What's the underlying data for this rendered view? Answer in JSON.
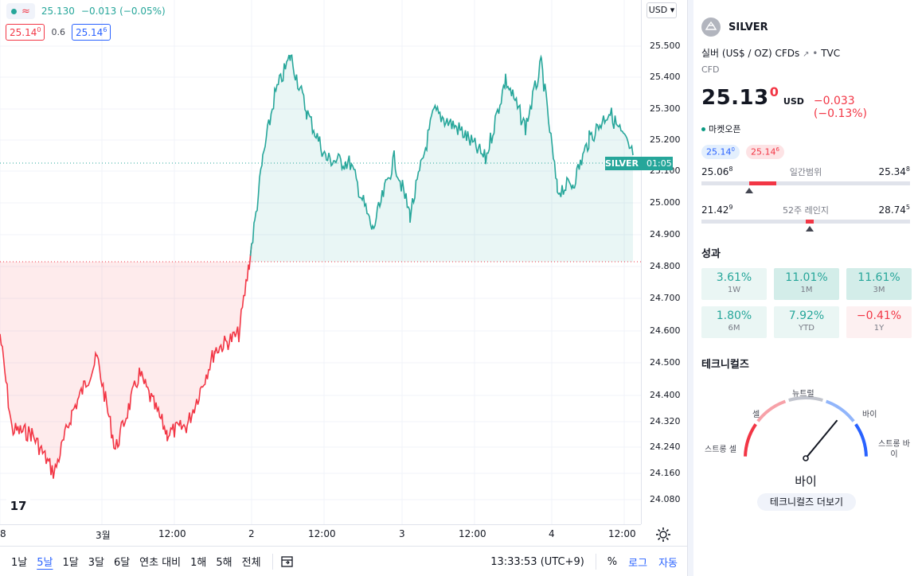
{
  "legend": {
    "toggle_icon": "wave-icon",
    "price": "25.130",
    "change": "−0.013 (−0.05%)"
  },
  "bidask": {
    "bid": "25.14",
    "bid_sup": "0",
    "spread": "0.6",
    "ask": "25.14",
    "ask_sup": "6"
  },
  "currency_button": "USD",
  "price_axis": [
    "25.500",
    "25.400",
    "25.300",
    "25.200",
    "25.100",
    "25.000",
    "24.900",
    "24.800",
    "24.700",
    "24.600",
    "24.500",
    "24.400",
    "24.320",
    "24.240",
    "24.160",
    "24.080"
  ],
  "price_tag": {
    "symbol": "SILVER",
    "countdown": "01:05"
  },
  "time_axis": [
    "8",
    "3월",
    "12:00",
    "2",
    "12:00",
    "3",
    "12:00",
    "4",
    "12:00"
  ],
  "toolbar": {
    "ranges": [
      "1날",
      "5날",
      "1달",
      "3달",
      "6달",
      "연초 대비",
      "1해",
      "5해",
      "전체"
    ],
    "active_range": "5날",
    "clock": "13:33:53 (UTC+9)",
    "percent": "%",
    "log": "로그",
    "auto": "자동"
  },
  "sidebar": {
    "symbol": "SILVER",
    "description": "실버 (US$ / OZ) CFDs",
    "exchange": "TVC",
    "type": "CFD",
    "price_main": "25.13",
    "price_sup": "0",
    "currency": "USD",
    "change": "−0.033 (−0.13%)",
    "market_status": "마켓오픈",
    "bid": "25.14",
    "bid_sup": "0",
    "ask": "25.14",
    "ask_sup": "6",
    "day_range": {
      "low": "25.06",
      "low_sup": "8",
      "label": "일간범위",
      "high": "25.34",
      "high_sup": "8",
      "fill_from": 0.23,
      "fill_to": 0.36,
      "marker": 0.23
    },
    "week52_range": {
      "low": "21.42",
      "low_sup": "9",
      "label": "52주 레인지",
      "high": "28.74",
      "high_sup": "5",
      "fill_from": 0.5,
      "fill_to": 0.54,
      "marker": 0.52
    },
    "performance_title": "성과",
    "performance": [
      {
        "value": "3.61%",
        "label": "1W",
        "tone": "g1"
      },
      {
        "value": "11.01%",
        "label": "1M",
        "tone": "g2"
      },
      {
        "value": "11.61%",
        "label": "3M",
        "tone": "g2"
      },
      {
        "value": "1.80%",
        "label": "6M",
        "tone": "g1"
      },
      {
        "value": "7.92%",
        "label": "YTD",
        "tone": "g1"
      },
      {
        "value": "−0.41%",
        "label": "1Y",
        "tone": "r1"
      }
    ],
    "technicals_title": "테크니컬즈",
    "gauge": {
      "strong_sell": "스트롱 셀",
      "sell": "셀",
      "neutral": "뉴트럴",
      "buy": "바이",
      "strong_buy": "스트롱 바이",
      "result": "바이",
      "needle_value": 0.72
    },
    "more_button": "테크니컬즈 더보기"
  },
  "colors": {
    "up": "#26a69a",
    "down": "#f23645",
    "accent": "#2962ff"
  }
}
